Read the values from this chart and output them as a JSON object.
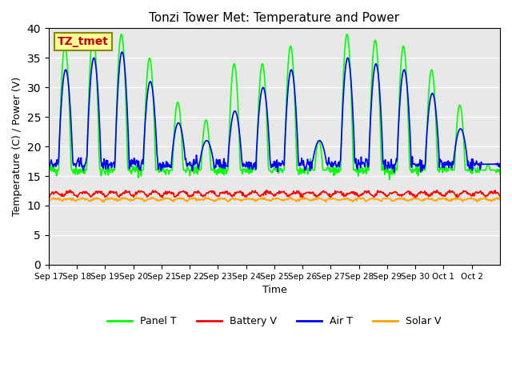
{
  "title": "Tonzi Tower Met: Temperature and Power",
  "ylabel": "Temperature (C) / Power (V)",
  "xlabel": "Time",
  "ylim": [
    0,
    40
  ],
  "yticks": [
    0,
    5,
    10,
    15,
    20,
    25,
    30,
    35,
    40
  ],
  "xtick_labels": [
    "Sep 17",
    "Sep 18",
    "Sep 19",
    "Sep 20",
    "Sep 21",
    "Sep 22",
    "Sep 23",
    "Sep 24",
    "Sep 25",
    "Sep 26",
    "Sep 27",
    "Sep 28",
    "Sep 29",
    "Sep 30",
    "Oct 1",
    "Oct 2"
  ],
  "colors": {
    "panel_t": "#00FF00",
    "battery_v": "#FF0000",
    "air_t": "#0000FF",
    "solar_v": "#FFA500"
  },
  "annotation_text": "TZ_tmet",
  "annotation_bg": "#FFFF99",
  "annotation_border": "#888800",
  "annotation_text_color": "#CC0000",
  "bg_color": "#E8E8E8",
  "legend_labels": [
    "Panel T",
    "Battery V",
    "Air T",
    "Solar V"
  ],
  "n_days": 16,
  "n_per_day": 48
}
